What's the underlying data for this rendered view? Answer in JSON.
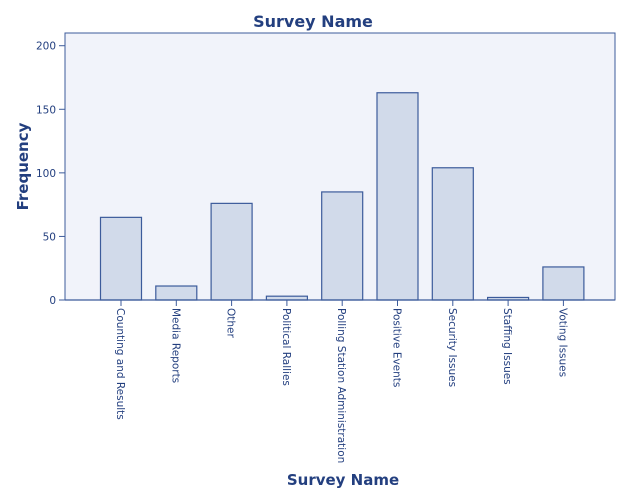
{
  "chart_data": {
    "type": "bar",
    "title": "Survey Name",
    "xlabel": "Survey Name",
    "ylabel": "Frequency",
    "ylim": [
      0,
      210
    ],
    "yticks": [
      0,
      50,
      100,
      150,
      200
    ],
    "grid": false,
    "categories": [
      "Counting and Results",
      "Media Reports",
      "Other",
      "Political Rallies",
      "Polling Station Administration",
      "Positive Events",
      "Security Issues",
      "Staffing Issues",
      "Voting Issues"
    ],
    "values": [
      65,
      11,
      76,
      3,
      85,
      163,
      104,
      2,
      26
    ],
    "colors": {
      "plot_background": "#f1f3fa",
      "bar_fill": "#d1daea",
      "bar_stroke": "#3c5b9b",
      "axis": "#3c5b9b",
      "text": "#233f7f"
    }
  }
}
